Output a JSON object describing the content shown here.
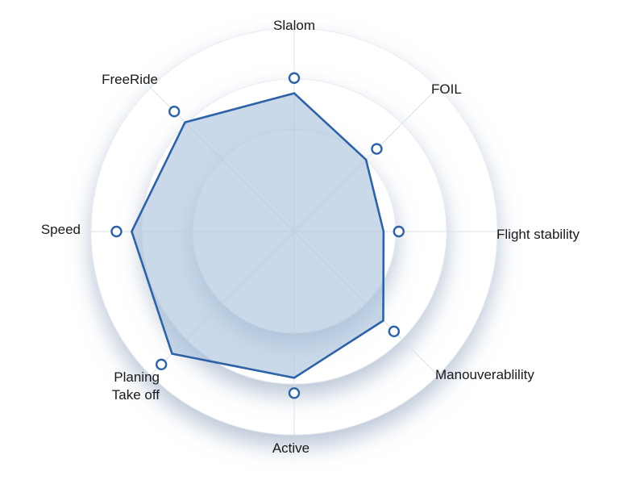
{
  "chart_data": {
    "type": "radar",
    "axes": [
      "Slalom",
      "FOIL",
      "Flight stability",
      "Manouverablility",
      "Active",
      "Planing Take off",
      "Speed",
      "FreeRide"
    ],
    "axis_label_lines": [
      [
        "Slalom"
      ],
      [
        "FOIL"
      ],
      [
        "Flight stability"
      ],
      [
        "Manouverablility"
      ],
      [
        "Active"
      ],
      [
        "Planing",
        "Take off"
      ],
      [
        "Speed"
      ],
      [
        "FreeRide"
      ]
    ],
    "series": [
      {
        "values": [
          0.68,
          0.5,
          0.44,
          0.62,
          0.72,
          0.85,
          0.8,
          0.76
        ]
      }
    ],
    "rings": [
      0.5,
      0.75,
      1.0
    ],
    "range": [
      0,
      1
    ],
    "colors": {
      "line": "#2E62A6",
      "fill": "#A9C2DC",
      "marker_fill": "#ffffff",
      "ring": "#ffffff",
      "ring_shadow": "#9FB0C6",
      "spoke": "#DCE2EA"
    }
  }
}
